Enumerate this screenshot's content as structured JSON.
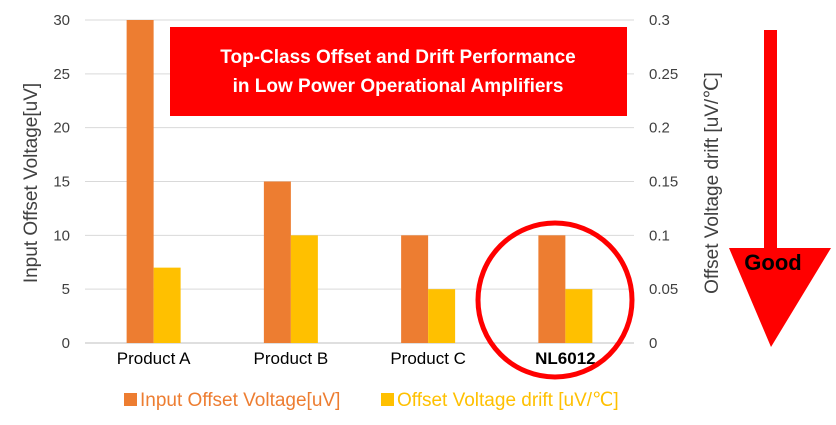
{
  "chart_data": {
    "type": "bar",
    "categories": [
      "Product A",
      "Product B",
      "Product C",
      "NL6012"
    ],
    "highlight_category": "NL6012",
    "series": [
      {
        "name": "Input Offset Voltage[uV]",
        "axis": "left",
        "color": "#ED7D31",
        "values": [
          30,
          15,
          10,
          10
        ]
      },
      {
        "name": "Offset Voltage drift [uV/℃]",
        "axis": "right",
        "color": "#FFC000",
        "values": [
          0.07,
          0.1,
          0.05,
          0.05
        ]
      }
    ],
    "y_left": {
      "label": "Input Offset Voltage[uV]",
      "lim": [
        0,
        30
      ],
      "ticks": [
        0,
        5,
        10,
        15,
        20,
        25,
        30
      ],
      "tick_labels": [
        "0",
        "5",
        "10",
        "15",
        "20",
        "25",
        "30"
      ]
    },
    "y_right": {
      "label": "Offset Voltage drift [uV/℃]",
      "lim": [
        0,
        0.3
      ],
      "ticks": [
        0,
        0.05,
        0.1,
        0.15,
        0.2,
        0.25,
        0.3
      ],
      "tick_labels": [
        "0",
        "0.05",
        "0.1",
        "0.15",
        "0.2",
        "0.25",
        "0.3"
      ]
    },
    "grid": true,
    "legend_position": "bottom"
  },
  "banner": {
    "line1": "Top-Class Offset and Drift Performance",
    "line2": "in Low Power Operational Amplifiers",
    "color": "#FF0000"
  },
  "indicator": {
    "label": "Good",
    "direction": "down",
    "color": "#FF0000"
  }
}
